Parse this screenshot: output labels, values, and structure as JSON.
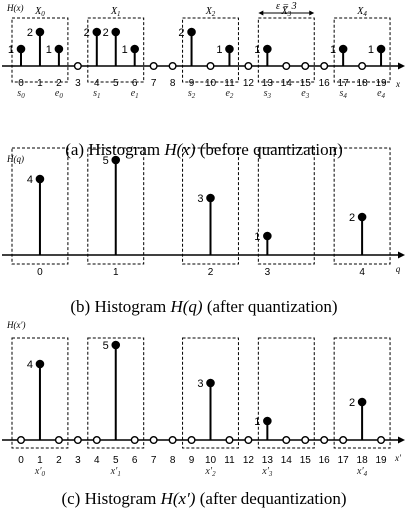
{
  "panels": [
    {
      "id": "a",
      "caption_prefix": "(a) Histogram",
      "caption_math": "H(x)",
      "caption_suffix": "(before quantization)",
      "ylabel": "H(x)",
      "xlabel": "x",
      "ticks": [
        "0",
        "1",
        "2",
        "3",
        "4",
        "5",
        "6",
        "7",
        "8",
        "9",
        "10",
        "11",
        "12",
        "13",
        "14",
        "15",
        "16",
        "17",
        "18",
        "19"
      ],
      "tick_positions": [
        0,
        1,
        2,
        3,
        4,
        5,
        6,
        7,
        8,
        9,
        10,
        11,
        12,
        13,
        14,
        15,
        16,
        17,
        18,
        19
      ],
      "bars": [
        {
          "x": 0,
          "count": 1
        },
        {
          "x": 1,
          "count": 2
        },
        {
          "x": 2,
          "count": 1
        },
        {
          "x": 4,
          "count": 2
        },
        {
          "x": 5,
          "count": 2
        },
        {
          "x": 6,
          "count": 1
        },
        {
          "x": 9,
          "count": 2
        },
        {
          "x": 11,
          "count": 1
        },
        {
          "x": 13,
          "count": 1
        },
        {
          "x": 17,
          "count": 1
        },
        {
          "x": 19,
          "count": 1
        }
      ],
      "empty_points": [
        3,
        7,
        8,
        10,
        12,
        14,
        15,
        16,
        18
      ],
      "boxes": [
        {
          "from": 0,
          "to": 2,
          "label": "X0"
        },
        {
          "from": 4,
          "to": 6,
          "label": "X1"
        },
        {
          "from": 9,
          "to": 11,
          "label": "X2"
        },
        {
          "from": 13,
          "to": 15,
          "label": "X3"
        },
        {
          "from": 17,
          "to": 19,
          "label": "X4"
        }
      ],
      "sublabels": [
        {
          "x": 0,
          "text": "s0"
        },
        {
          "x": 2,
          "text": "e0"
        },
        {
          "x": 4,
          "text": "s1"
        },
        {
          "x": 6,
          "text": "e1"
        },
        {
          "x": 9,
          "text": "s2"
        },
        {
          "x": 11,
          "text": "e2"
        },
        {
          "x": 13,
          "text": "s3"
        },
        {
          "x": 15,
          "text": "e3"
        },
        {
          "x": 17,
          "text": "s4"
        },
        {
          "x": 19,
          "text": "e4"
        }
      ],
      "epsilon_label": "ε = 3"
    },
    {
      "id": "b",
      "caption_prefix": "(b) Histogram",
      "caption_math": "H(q)",
      "caption_suffix": "(after quantization)",
      "ylabel": "H(q)",
      "xlabel": "q",
      "ticks": [
        "0",
        "1",
        "2",
        "3",
        "4"
      ],
      "tick_positions": [
        1,
        5,
        10,
        13,
        18
      ],
      "bars": [
        {
          "x": 1,
          "count": 4
        },
        {
          "x": 5,
          "count": 5
        },
        {
          "x": 10,
          "count": 3
        },
        {
          "x": 13,
          "count": 1
        },
        {
          "x": 18,
          "count": 2
        }
      ],
      "empty_points": [],
      "boxes": [
        {
          "from": 0,
          "to": 2,
          "label": ""
        },
        {
          "from": 4,
          "to": 6,
          "label": ""
        },
        {
          "from": 9,
          "to": 11,
          "label": ""
        },
        {
          "from": 13,
          "to": 15,
          "label": ""
        },
        {
          "from": 17,
          "to": 19,
          "label": ""
        }
      ],
      "sublabels": []
    },
    {
      "id": "c",
      "caption_prefix": "(c) Histogram",
      "caption_math": "H(x′)",
      "caption_suffix": "(after dequantization)",
      "ylabel": "H(x′)",
      "xlabel": "x′",
      "ticks": [
        "0",
        "1",
        "2",
        "3",
        "4",
        "5",
        "6",
        "7",
        "8",
        "9",
        "10",
        "11",
        "12",
        "13",
        "14",
        "15",
        "16",
        "17",
        "18",
        "19"
      ],
      "tick_positions": [
        0,
        1,
        2,
        3,
        4,
        5,
        6,
        7,
        8,
        9,
        10,
        11,
        12,
        13,
        14,
        15,
        16,
        17,
        18,
        19
      ],
      "bars": [
        {
          "x": 1,
          "count": 4
        },
        {
          "x": 5,
          "count": 5
        },
        {
          "x": 10,
          "count": 3
        },
        {
          "x": 13,
          "count": 1
        },
        {
          "x": 18,
          "count": 2
        }
      ],
      "empty_points": [
        0,
        2,
        3,
        4,
        6,
        7,
        8,
        9,
        11,
        12,
        14,
        15,
        16,
        17,
        19
      ],
      "boxes": [
        {
          "from": 0,
          "to": 2,
          "label": ""
        },
        {
          "from": 4,
          "to": 6,
          "label": ""
        },
        {
          "from": 9,
          "to": 11,
          "label": ""
        },
        {
          "from": 13,
          "to": 15,
          "label": ""
        },
        {
          "from": 17,
          "to": 19,
          "label": ""
        }
      ],
      "sublabels": [
        {
          "x": 1,
          "text": "x′0"
        },
        {
          "x": 5,
          "text": "x′1"
        },
        {
          "x": 10,
          "text": "x′2"
        },
        {
          "x": 13,
          "text": "x′3"
        },
        {
          "x": 18,
          "text": "x′4"
        }
      ]
    }
  ]
}
